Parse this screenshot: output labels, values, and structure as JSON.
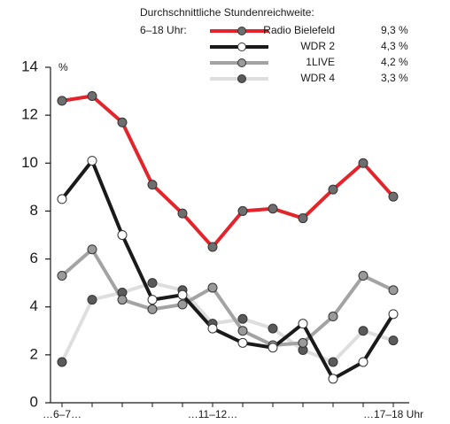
{
  "chart_data": {
    "type": "line",
    "legend_title": "Durchschnittliche Stundenreichweite:",
    "legend_subtitle": "6–18 Uhr:",
    "y_unit": "%",
    "categories": [
      "…6–7…",
      null,
      null,
      null,
      null,
      "…11–12…",
      null,
      null,
      null,
      null,
      null,
      "…17–18 Uhr"
    ],
    "ylim": [
      0,
      14
    ],
    "yticks": [
      0,
      2,
      4,
      6,
      8,
      10,
      12,
      14
    ],
    "series": [
      {
        "name": "Radio Bielefeld",
        "average": "9,3 %",
        "color": "#e3242b",
        "marker_color": "#6e6e6e",
        "values": [
          12.6,
          12.8,
          11.7,
          9.1,
          7.9,
          6.5,
          8.0,
          8.1,
          7.7,
          8.9,
          10.0,
          8.6
        ]
      },
      {
        "name": "WDR 2",
        "average": "4,3 %",
        "color": "#1a1a1a",
        "marker_color": "#ffffff",
        "values": [
          8.5,
          10.1,
          7.0,
          4.3,
          4.5,
          3.1,
          2.5,
          2.3,
          3.3,
          1.0,
          1.7,
          3.7
        ]
      },
      {
        "name": "1LIVE",
        "average": "4,2 %",
        "color": "#a3a3a3",
        "marker_color": "#9a9a9a",
        "values": [
          5.3,
          6.4,
          4.3,
          3.9,
          4.1,
          4.8,
          3.0,
          2.4,
          2.5,
          3.6,
          5.3,
          4.7
        ]
      },
      {
        "name": "WDR 4",
        "average": "3,3 %",
        "color": "#dedede",
        "marker_color": "#5a5a5a",
        "values": [
          1.7,
          4.3,
          4.6,
          5.0,
          4.7,
          3.3,
          3.5,
          3.1,
          2.2,
          1.7,
          3.0,
          2.6
        ]
      }
    ]
  }
}
